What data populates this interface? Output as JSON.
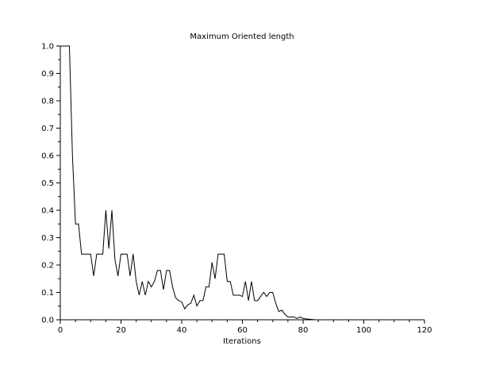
{
  "chart_data": {
    "type": "line",
    "title": "Maximum Oriented length",
    "xlabel": "Iterations",
    "ylabel": "",
    "xlim": [
      0,
      120
    ],
    "ylim": [
      0,
      1.0
    ],
    "grid": false,
    "x_ticks": [
      "0",
      "20",
      "40",
      "60",
      "80",
      "100",
      "120"
    ],
    "y_ticks": [
      "0.0",
      "0.1",
      "0.2",
      "0.3",
      "0.4",
      "0.5",
      "0.6",
      "0.7",
      "0.8",
      "0.9",
      "1.0"
    ],
    "series": [
      {
        "x": [
          0,
          1,
          2,
          3,
          4,
          5,
          6,
          7,
          8,
          9,
          10,
          11,
          12,
          13,
          14,
          15,
          16,
          17,
          18,
          19,
          20,
          21,
          22,
          23,
          24,
          25,
          26,
          27,
          28,
          29,
          30,
          31,
          32,
          33,
          34,
          35,
          36,
          37,
          38,
          39,
          40,
          41,
          42,
          43,
          44,
          45,
          46,
          47,
          48,
          49,
          50,
          51,
          52,
          53,
          54,
          55,
          56,
          57,
          58,
          59,
          60,
          61,
          62,
          63,
          64,
          65,
          66,
          67,
          68,
          69,
          70,
          71,
          72,
          73,
          74,
          75,
          76,
          77,
          78,
          79,
          80,
          81,
          82,
          83,
          84
        ],
        "y": [
          1.0,
          1.0,
          1.0,
          1.0,
          0.6,
          0.35,
          0.35,
          0.24,
          0.24,
          0.24,
          0.24,
          0.16,
          0.24,
          0.24,
          0.24,
          0.4,
          0.26,
          0.4,
          0.22,
          0.16,
          0.24,
          0.24,
          0.24,
          0.16,
          0.24,
          0.14,
          0.09,
          0.14,
          0.09,
          0.14,
          0.12,
          0.14,
          0.18,
          0.18,
          0.11,
          0.18,
          0.18,
          0.12,
          0.08,
          0.07,
          0.065,
          0.04,
          0.055,
          0.06,
          0.09,
          0.05,
          0.07,
          0.07,
          0.12,
          0.12,
          0.21,
          0.15,
          0.24,
          0.24,
          0.24,
          0.14,
          0.14,
          0.09,
          0.09,
          0.09,
          0.085,
          0.14,
          0.07,
          0.14,
          0.07,
          0.07,
          0.085,
          0.1,
          0.085,
          0.1,
          0.1,
          0.06,
          0.03,
          0.035,
          0.02,
          0.01,
          0.01,
          0.01,
          0.005,
          0.01,
          0.005,
          0.003,
          0.002,
          0.001,
          0.0
        ]
      }
    ]
  }
}
